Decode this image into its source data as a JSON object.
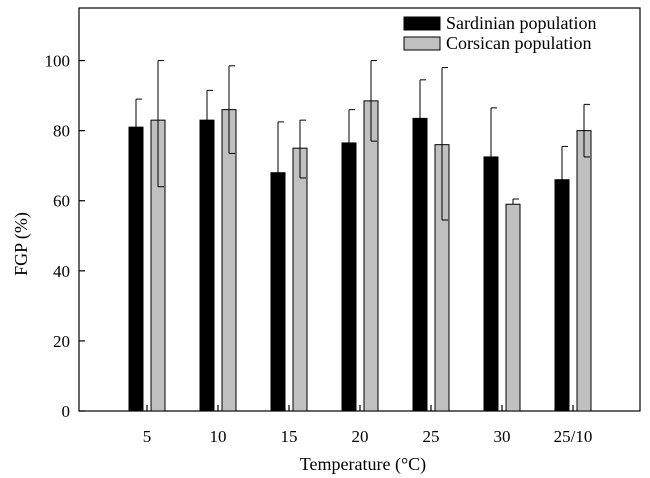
{
  "chart_data": {
    "type": "bar",
    "xlabel": "Temperature (°C)",
    "ylabel": "FGP (%)",
    "ylim": [
      0,
      115
    ],
    "yticks": [
      0,
      20,
      40,
      60,
      80,
      100
    ],
    "grid": false,
    "legend_position": "top-right",
    "categories": [
      "5",
      "10",
      "15",
      "20",
      "25",
      "30",
      "25/10"
    ],
    "series": [
      {
        "name": "Sardinian population",
        "color": "#000000",
        "values": [
          81,
          83,
          68,
          76.5,
          83.5,
          72.5,
          66
        ],
        "error_upper": [
          89,
          91.5,
          82.5,
          86,
          94.5,
          86.5,
          75.5
        ],
        "error_lower": [
          null,
          null,
          null,
          null,
          null,
          null,
          null
        ]
      },
      {
        "name": "Corsican population",
        "color": "#c0c0c0",
        "values": [
          83,
          86,
          75,
          88.5,
          76,
          59,
          80
        ],
        "error_upper": [
          100,
          98.5,
          83,
          100,
          98,
          60.5,
          87.5
        ],
        "error_lower": [
          64,
          73.5,
          66.5,
          77,
          54.5,
          null,
          72.5
        ]
      }
    ]
  }
}
